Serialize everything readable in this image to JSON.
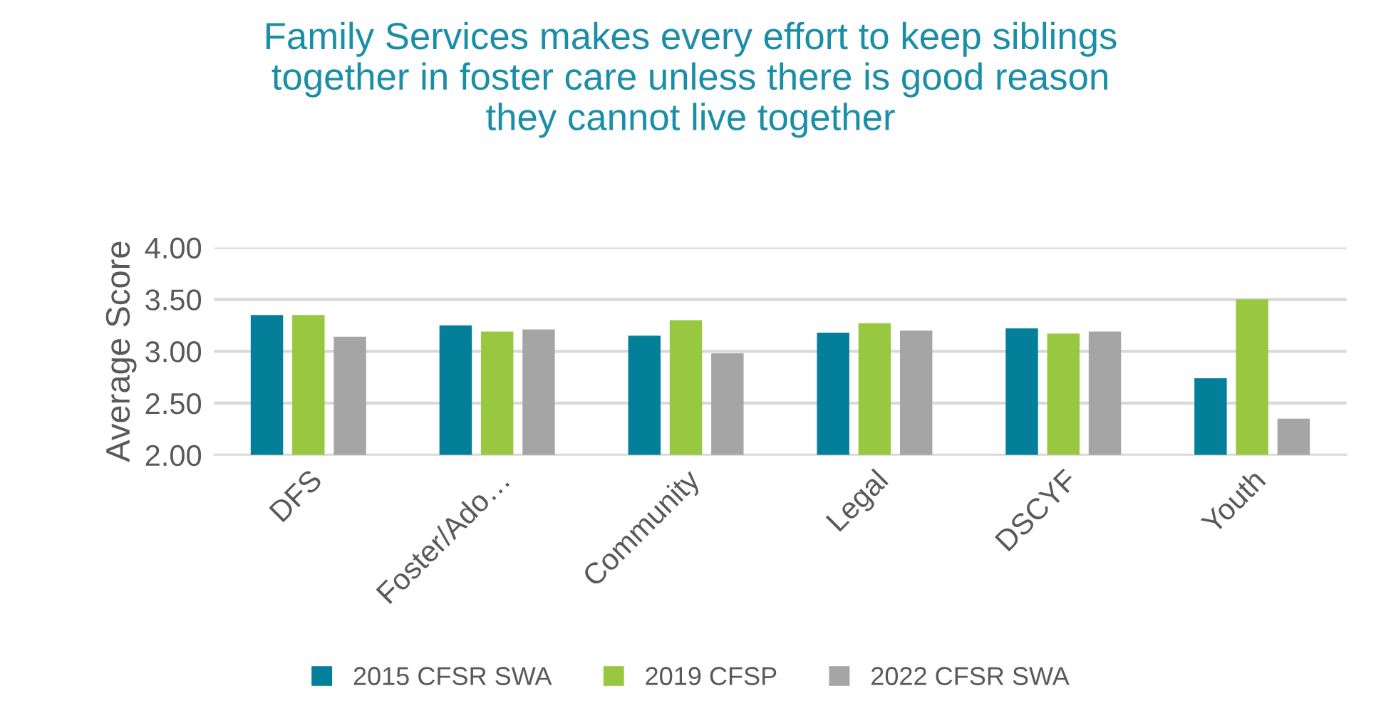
{
  "chart_data": {
    "type": "bar",
    "title": "Family Services makes every effort to keep siblings\ntogether in foster care unless there is good reason\nthey cannot live together",
    "ylabel": "Average Score",
    "categories": [
      "DFS",
      "Foster/Ado…",
      "Community",
      "Legal",
      "DSCYF",
      "Youth"
    ],
    "series": [
      {
        "name": "2015 CFSR SWA",
        "color": "#037f99",
        "values": [
          3.35,
          3.25,
          3.15,
          3.18,
          3.22,
          2.74
        ]
      },
      {
        "name": "2019 CFSP",
        "color": "#98c83f",
        "values": [
          3.35,
          3.19,
          3.3,
          3.27,
          3.17,
          3.5
        ]
      },
      {
        "name": "2022 CFSR SWA",
        "color": "#a5a5a5",
        "values": [
          3.14,
          3.21,
          2.98,
          3.2,
          3.19,
          2.35
        ]
      }
    ],
    "ylim": [
      2.0,
      4.0
    ],
    "yticks": [
      {
        "value": 2.0,
        "label": "2.00"
      },
      {
        "value": 2.5,
        "label": "2.50"
      },
      {
        "value": 3.0,
        "label": "3.00"
      },
      {
        "value": 3.5,
        "label": "3.50"
      },
      {
        "value": 4.0,
        "label": "4.00"
      }
    ],
    "grid": "y",
    "legend": "bottom"
  }
}
